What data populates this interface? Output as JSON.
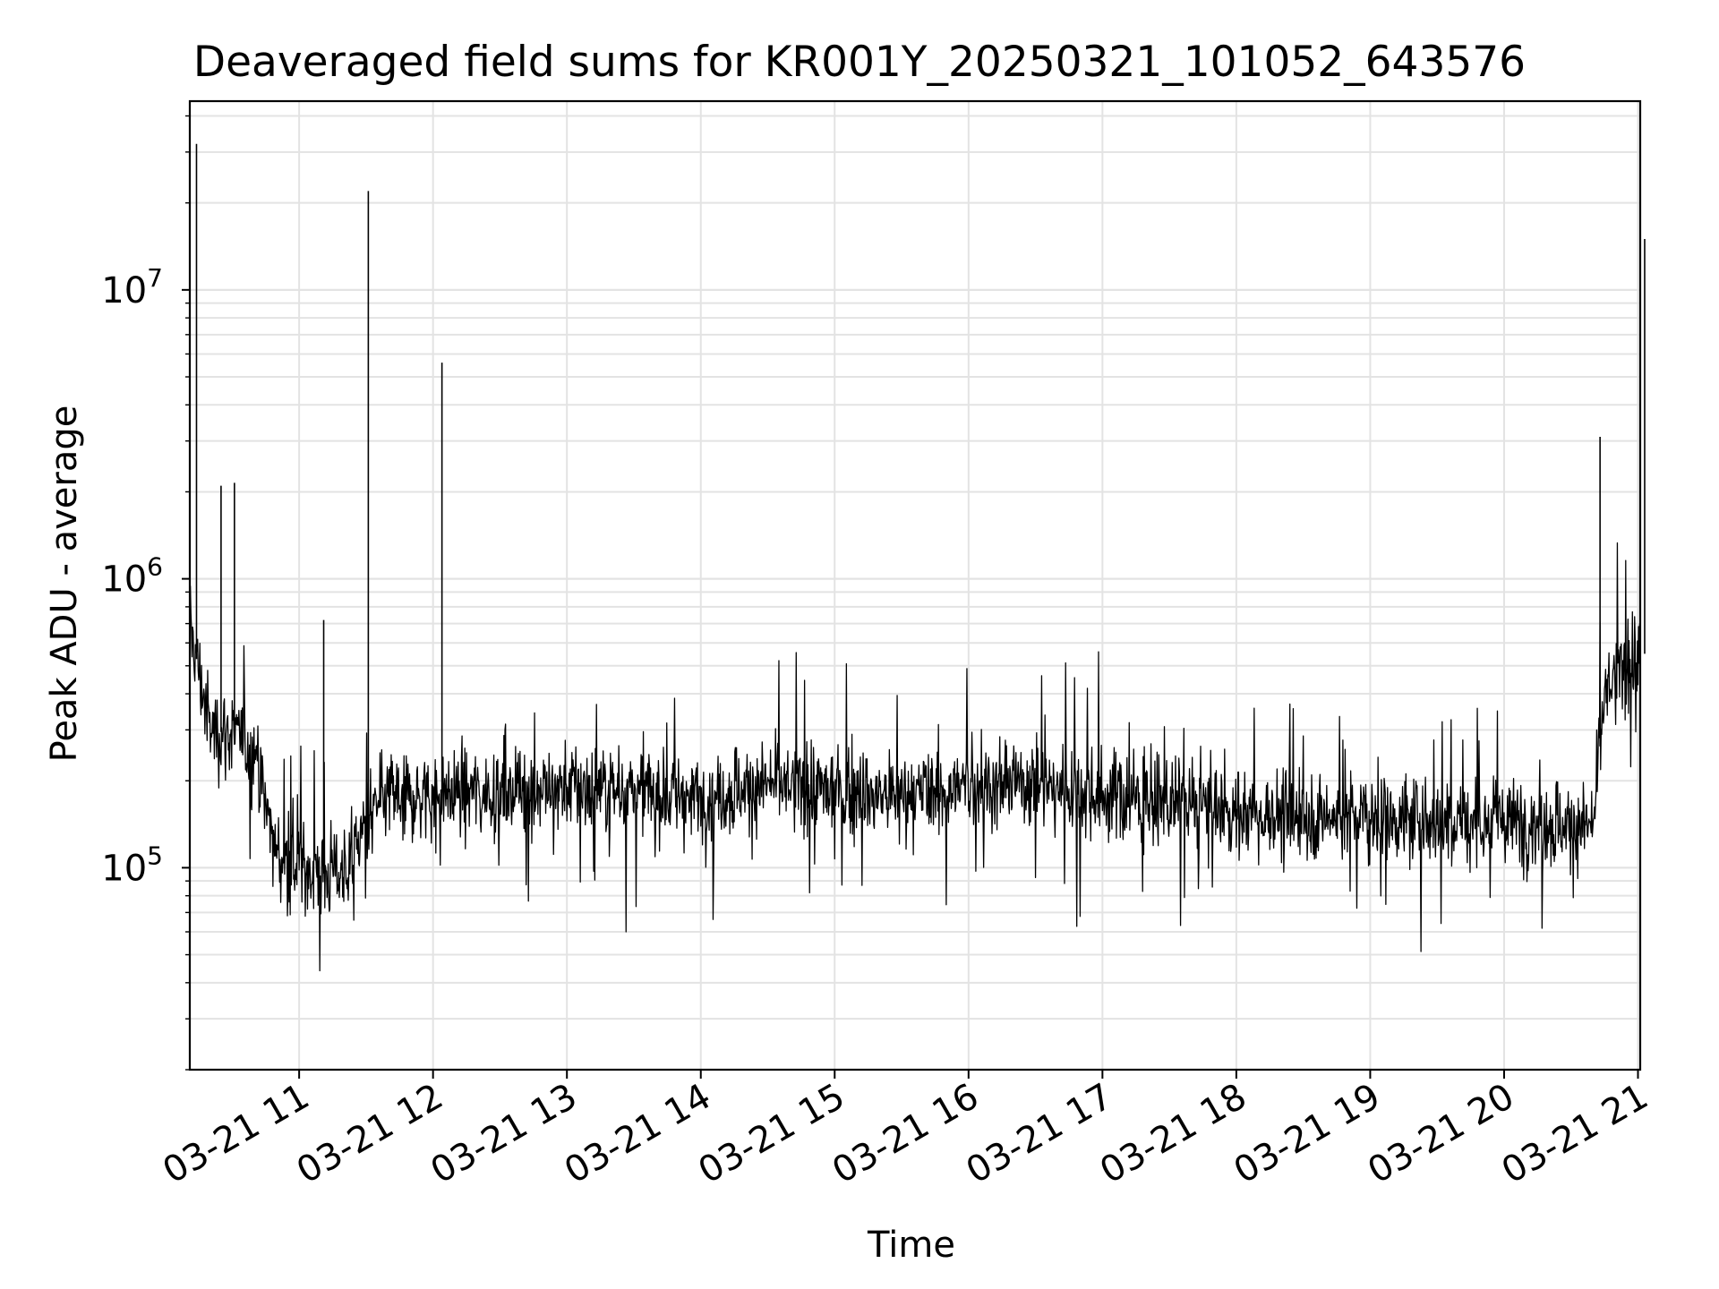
{
  "chart_data": {
    "type": "line",
    "title": "Deaveraged field sums for KR001Y_20250321_101052_643576",
    "xlabel": "Time",
    "ylabel": "Peak ADU - average",
    "y_scale": "log",
    "ylim": [
      20000,
      45000000
    ],
    "xlim": [
      "2025-03-21T10:11",
      "2025-03-21T21:01"
    ],
    "x_tick_labels": [
      "03-21 11",
      "03-21 12",
      "03-21 13",
      "03-21 14",
      "03-21 15",
      "03-21 16",
      "03-21 17",
      "03-21 18",
      "03-21 19",
      "03-21 20",
      "03-21 21"
    ],
    "y_tick_labels": [
      {
        "value": 100000,
        "base": "10",
        "exp": "5"
      },
      {
        "value": 1000000,
        "base": "10",
        "exp": "6"
      },
      {
        "value": 10000000,
        "base": "10",
        "exp": "7"
      }
    ],
    "grid": true,
    "line_color": "#000000",
    "series": [
      {
        "x": [
          "2025-03-21T10:11",
          "2025-03-21T10:20",
          "2025-03-21T10:30",
          "2025-03-21T10:40",
          "2025-03-21T10:50",
          "2025-03-21T11:00",
          "2025-03-21T11:10",
          "2025-03-21T11:20",
          "2025-03-21T11:30",
          "2025-03-21T11:40",
          "2025-03-21T11:50",
          "2025-03-21T12:00",
          "2025-03-21T12:30",
          "2025-03-21T13:00",
          "2025-03-21T13:30",
          "2025-03-21T14:00",
          "2025-03-21T14:30",
          "2025-03-21T15:00",
          "2025-03-21T15:30",
          "2025-03-21T16:00",
          "2025-03-21T16:30",
          "2025-03-21T17:00",
          "2025-03-21T17:30",
          "2025-03-21T18:00",
          "2025-03-21T18:30",
          "2025-03-21T19:00",
          "2025-03-21T19:30",
          "2025-03-21T20:00",
          "2025-03-21T20:30",
          "2025-03-21T20:40",
          "2025-03-21T20:45",
          "2025-03-21T20:50",
          "2025-03-21T21:00"
        ],
        "values": [
          700000,
          300000,
          290000,
          250000,
          110000,
          100000,
          95000,
          100000,
          140000,
          180000,
          175000,
          180000,
          185000,
          190000,
          185000,
          175000,
          195000,
          185000,
          175000,
          190000,
          200000,
          180000,
          165000,
          155000,
          150000,
          150000,
          145000,
          145000,
          140000,
          140000,
          400000,
          450000,
          550000
        ]
      }
    ],
    "spikes": [
      {
        "x": "2025-03-21T10:14",
        "value": 32000000
      },
      {
        "x": "2025-03-21T10:25",
        "value": 2100000
      },
      {
        "x": "2025-03-21T10:31",
        "value": 2150000
      },
      {
        "x": "2025-03-21T11:11",
        "value": 720000
      },
      {
        "x": "2025-03-21T11:31",
        "value": 22000000
      },
      {
        "x": "2025-03-21T12:04",
        "value": 5600000
      },
      {
        "x": "2025-03-21T20:43",
        "value": 3100000
      },
      {
        "x": "2025-03-21T21:03",
        "value": 15000000
      }
    ]
  }
}
